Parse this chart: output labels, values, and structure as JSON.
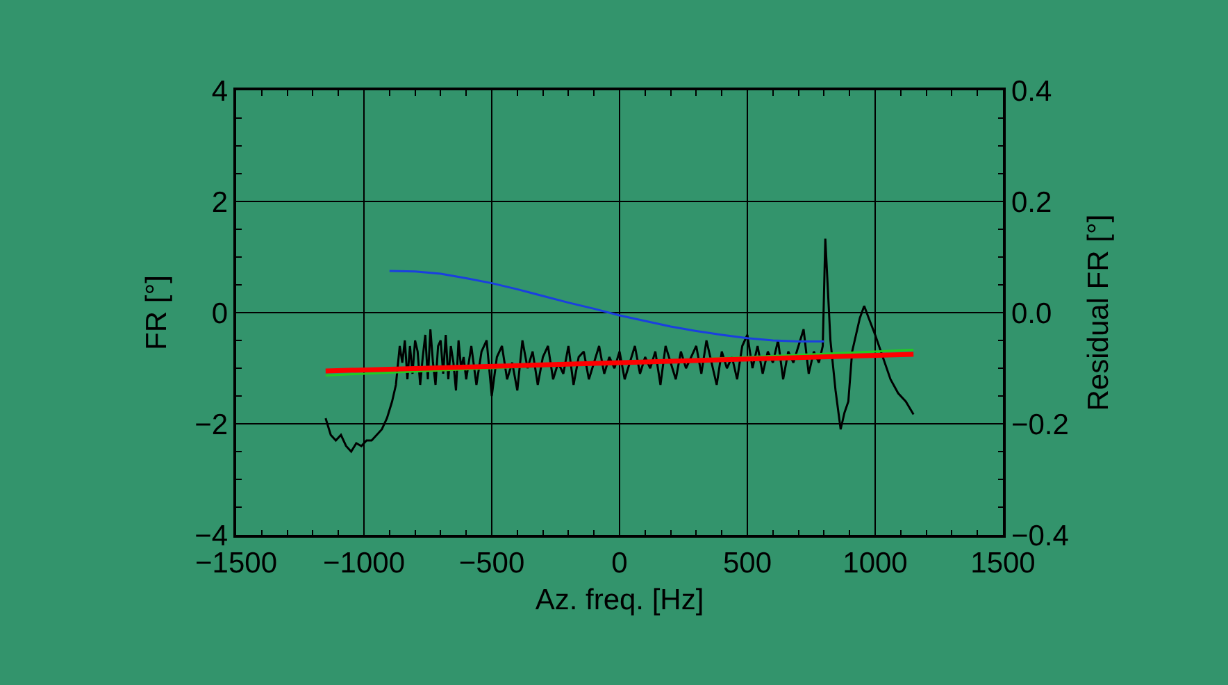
{
  "chart_data": {
    "type": "line",
    "xlabel": "Az. freq. [Hz]",
    "ylabel": "FR [°]",
    "y2label": "Residual FR [°]",
    "xlim": [
      -1500,
      1500
    ],
    "xticks": [
      {
        "value": -1500,
        "label": "−1500"
      },
      {
        "value": -1000,
        "label": "−1000"
      },
      {
        "value": -500,
        "label": "−500"
      },
      0,
      500,
      1000,
      1500
    ],
    "ylim": [
      -4,
      4
    ],
    "yticks": [
      {
        "value": -4,
        "label": "−4"
      },
      {
        "value": -2,
        "label": "−2"
      },
      0,
      2,
      4
    ],
    "y2lim": [
      -0.4,
      0.4
    ],
    "y2ticks": [
      {
        "value": -0.4,
        "label": "−0.4"
      },
      {
        "value": -0.2,
        "label": "−0.2"
      },
      {
        "value": 0,
        "label": "0.0"
      },
      {
        "value": 0.2,
        "label": "0.2"
      },
      {
        "value": 0.4,
        "label": "0.4"
      }
    ],
    "grid": true,
    "marker": "none",
    "line_style": "solid",
    "series": [
      {
        "color": "#000000",
        "x": [
          -1150,
          -1130,
          -1110,
          -1090,
          -1070,
          -1050,
          -1030,
          -1010,
          -990,
          -970,
          -950,
          -930,
          -910,
          -890,
          -875,
          -860,
          -850,
          -840,
          -830,
          -820,
          -810,
          -800,
          -790,
          -780,
          -770,
          -760,
          -750,
          -740,
          -730,
          -720,
          -710,
          -700,
          -690,
          -680,
          -670,
          -660,
          -650,
          -640,
          -630,
          -620,
          -610,
          -600,
          -580,
          -560,
          -540,
          -520,
          -500,
          -480,
          -460,
          -440,
          -420,
          -400,
          -380,
          -360,
          -340,
          -320,
          -300,
          -280,
          -260,
          -240,
          -220,
          -200,
          -180,
          -160,
          -140,
          -120,
          -100,
          -80,
          -60,
          -40,
          -20,
          0,
          20,
          40,
          60,
          80,
          100,
          120,
          140,
          160,
          180,
          200,
          220,
          240,
          260,
          280,
          300,
          320,
          340,
          360,
          380,
          400,
          420,
          440,
          460,
          480,
          500,
          520,
          540,
          560,
          580,
          600,
          620,
          640,
          660,
          680,
          700,
          720,
          740,
          760,
          780,
          795,
          805,
          825,
          845,
          865,
          880,
          895,
          910,
          925,
          940,
          957,
          975,
          1000,
          1030,
          1060,
          1090,
          1120,
          1150
        ],
        "values": [
          -1.9,
          -2.2,
          -2.3,
          -2.2,
          -2.4,
          -2.5,
          -2.35,
          -2.4,
          -2.3,
          -2.3,
          -2.2,
          -2.1,
          -1.9,
          -1.6,
          -1.3,
          -0.6,
          -0.9,
          -0.5,
          -1.2,
          -0.6,
          -1.1,
          -0.5,
          -0.7,
          -1.3,
          -0.8,
          -0.4,
          -1.2,
          -0.3,
          -0.9,
          -1.3,
          -0.6,
          -0.5,
          -1.1,
          -0.4,
          -1.2,
          -0.6,
          -0.9,
          -1.4,
          -0.5,
          -1.0,
          -0.8,
          -1.2,
          -0.6,
          -1.3,
          -0.7,
          -0.5,
          -1.5,
          -0.8,
          -0.6,
          -1.2,
          -0.9,
          -1.4,
          -0.5,
          -1.0,
          -0.7,
          -1.3,
          -0.8,
          -0.6,
          -1.2,
          -0.9,
          -1.1,
          -0.6,
          -1.3,
          -0.8,
          -0.7,
          -1.2,
          -0.9,
          -0.6,
          -1.1,
          -0.8,
          -1.0,
          -0.7,
          -1.2,
          -0.9,
          -0.6,
          -1.1,
          -0.8,
          -1.0,
          -0.7,
          -1.3,
          -0.6,
          -0.9,
          -1.2,
          -0.7,
          -1.0,
          -0.8,
          -0.6,
          -1.1,
          -0.5,
          -0.9,
          -1.3,
          -0.7,
          -1.0,
          -0.8,
          -1.2,
          -0.6,
          -0.4,
          -1.0,
          -0.6,
          -1.1,
          -0.7,
          -0.9,
          -0.5,
          -1.2,
          -0.7,
          -0.9,
          -0.6,
          -0.3,
          -1.1,
          -0.7,
          -0.9,
          -0.6,
          1.33,
          -0.5,
          -1.4,
          -2.1,
          -1.8,
          -1.6,
          -0.7,
          -0.4,
          -0.1,
          0.12,
          -0.1,
          -0.4,
          -0.8,
          -1.2,
          -1.45,
          -1.6,
          -1.83
        ]
      },
      {
        "color": "#1a3fe0",
        "x": [
          -900,
          -800,
          -700,
          -600,
          -500,
          -400,
          -300,
          -200,
          -100,
          0,
          100,
          200,
          300,
          400,
          500,
          600,
          700,
          800
        ],
        "values": [
          0.75,
          0.74,
          0.7,
          0.62,
          0.53,
          0.42,
          0.3,
          0.18,
          0.07,
          -0.05,
          -0.15,
          -0.25,
          -0.33,
          -0.4,
          -0.46,
          -0.5,
          -0.52,
          -0.52
        ]
      },
      {
        "color": "#22cc22",
        "x": [
          -1150,
          1150
        ],
        "values": [
          -1.13,
          -0.67
        ]
      },
      {
        "color": "#ff0000",
        "x": [
          -1150,
          1150
        ],
        "values": [
          -1.05,
          -0.75
        ]
      }
    ]
  }
}
